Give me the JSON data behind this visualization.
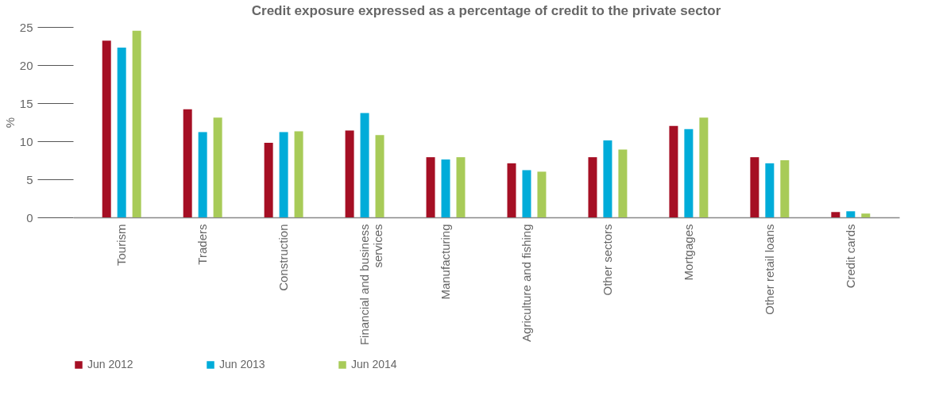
{
  "chart_data": {
    "type": "bar",
    "title": "Credit exposure expressed as a percentage of credit to the private sector",
    "ylabel": "%",
    "categories": [
      "Tourism",
      "Traders",
      "Construction",
      "Financial and business services",
      "Manufacturing",
      "Agriculture and fishing",
      "Other sectors",
      "Mortgages",
      "Other retail loans",
      "Credit cards"
    ],
    "series": [
      {
        "name": "Jun 2012",
        "color": "#a50f24",
        "values": [
          23.2,
          14.2,
          9.8,
          11.4,
          7.9,
          7.1,
          7.9,
          12.0,
          7.9,
          0.7
        ]
      },
      {
        "name": "Jun 2013",
        "color": "#00acd9",
        "values": [
          22.3,
          11.2,
          11.2,
          13.7,
          7.6,
          6.2,
          10.1,
          11.6,
          7.1,
          0.8
        ]
      },
      {
        "name": "Jun 2014",
        "color": "#a8cb58",
        "values": [
          24.5,
          13.1,
          11.3,
          10.8,
          7.9,
          6.0,
          8.9,
          13.1,
          7.5,
          0.5
        ]
      }
    ],
    "ylim": [
      0,
      25
    ],
    "yticks": [
      0,
      5,
      10,
      15,
      20,
      25
    ],
    "grid": false,
    "legend": "bottom"
  }
}
